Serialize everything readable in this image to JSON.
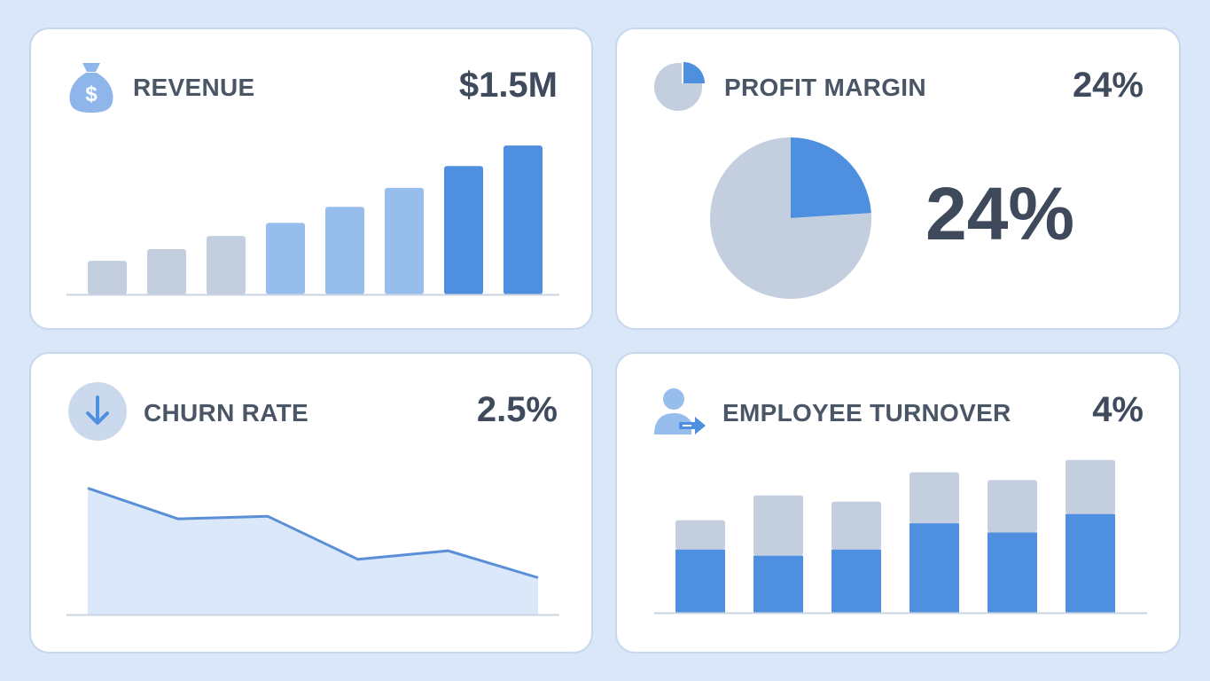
{
  "colors": {
    "accent": "#4f8fdf",
    "accent_light": "#97bdec",
    "muted": "#c3cfde",
    "area_fill": "#dbe8f9",
    "line": "#5a8fd8",
    "axis": "#cbd5e1"
  },
  "cards": {
    "revenue": {
      "title": "REVENUE",
      "value": "$1.5M",
      "icon": "money-bag-icon"
    },
    "profit": {
      "title": "PROFIT MARGIN",
      "value": "24%",
      "big_value": "24%",
      "icon": "pie-icon"
    },
    "churn": {
      "title": "CHURN RATE",
      "value": "2.5%",
      "icon": "arrow-down-circle-icon"
    },
    "turnover": {
      "title": "EMPLOYEE TURNOVER",
      "value": "4%",
      "icon": "user-exit-icon"
    }
  },
  "chart_data": [
    {
      "type": "bar",
      "card": "revenue",
      "values": [
        2.3,
        3.1,
        4.0,
        4.9,
        6.0,
        7.3,
        8.8,
        10.2
      ],
      "bar_styles": [
        "muted",
        "muted",
        "muted",
        "accent_light",
        "accent_light",
        "accent_light",
        "accent",
        "accent"
      ],
      "ylim": [
        0,
        11
      ]
    },
    {
      "type": "pie",
      "card": "profit",
      "slices": [
        {
          "value": 24,
          "style": "accent"
        },
        {
          "value": 76,
          "style": "muted"
        }
      ]
    },
    {
      "type": "area",
      "card": "churn",
      "values": [
        10.3,
        7.8,
        8.0,
        4.5,
        5.2,
        3.0
      ],
      "ylim": [
        0,
        12
      ]
    },
    {
      "type": "bar",
      "card": "turnover",
      "stacked": true,
      "series": [
        {
          "values": [
            4.1,
            3.7,
            4.1,
            5.8,
            5.2,
            6.4
          ],
          "style": "accent"
        },
        {
          "values": [
            1.9,
            3.9,
            3.1,
            3.3,
            3.4,
            3.5
          ],
          "style": "muted"
        }
      ],
      "ylim": [
        0,
        10
      ]
    }
  ]
}
